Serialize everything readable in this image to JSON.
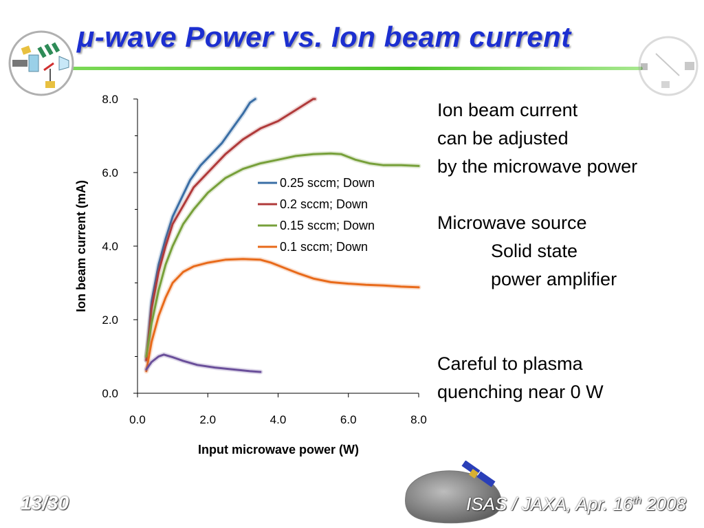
{
  "slide": {
    "title": "μ-wave Power vs. Ion beam current",
    "page_number": "13/30",
    "footer_org": "ISAS / JAXA, Apr. 16",
    "footer_sup": "th",
    "footer_year": " 2008"
  },
  "notes": {
    "line1": "Ion beam current",
    "line2": "can be adjusted",
    "line3": "by the microwave power",
    "line4": "Microwave source",
    "line5": "Solid state",
    "line6": "power amplifier",
    "line7": "Careful to plasma",
    "line8": "quenching near 0 W"
  },
  "colors": {
    "title": "#1c2fd0",
    "accent_bar": "#4fc62b"
  },
  "chart_data": {
    "type": "line",
    "xlabel": "Input microwave power (W)",
    "ylabel": "Ion beam current (mA)",
    "xlim": [
      0,
      8
    ],
    "ylim": [
      0,
      8
    ],
    "x_ticks": [
      "0.0",
      "2.0",
      "4.0",
      "6.0",
      "8.0"
    ],
    "y_ticks": [
      "0.0",
      "2.0",
      "4.0",
      "6.0",
      "8.0"
    ],
    "grid": false,
    "legend_position": "upper-right inside plot",
    "series": [
      {
        "name": "0.25 sccm; Down",
        "color": "#3a6ea5",
        "x": [
          0.25,
          0.4,
          0.6,
          0.8,
          1.0,
          1.2,
          1.5,
          1.8,
          2.1,
          2.4,
          2.7,
          3.0,
          3.2,
          3.35
        ],
        "y": [
          0.9,
          2.5,
          3.5,
          4.2,
          4.8,
          5.2,
          5.8,
          6.2,
          6.5,
          6.8,
          7.2,
          7.6,
          7.9,
          8.0
        ]
      },
      {
        "name": "0.2 sccm; Down",
        "color": "#b03a3a",
        "x": [
          0.25,
          0.4,
          0.6,
          0.8,
          1.0,
          1.3,
          1.6,
          2.0,
          2.5,
          3.0,
          3.5,
          4.0,
          4.5,
          5.0,
          5.05
        ],
        "y": [
          0.9,
          2.3,
          3.3,
          4.0,
          4.6,
          5.1,
          5.6,
          6.0,
          6.5,
          6.9,
          7.2,
          7.4,
          7.7,
          8.0,
          8.0
        ]
      },
      {
        "name": "0.15 sccm; Down",
        "color": "#77a03a",
        "x": [
          0.25,
          0.4,
          0.6,
          0.8,
          1.0,
          1.3,
          1.6,
          2.0,
          2.5,
          3.0,
          3.5,
          4.0,
          4.5,
          5.0,
          5.5,
          5.8,
          6.2,
          6.6,
          7.0,
          7.5,
          8.0
        ],
        "y": [
          1.0,
          1.9,
          2.8,
          3.5,
          4.0,
          4.6,
          5.0,
          5.45,
          5.85,
          6.1,
          6.25,
          6.35,
          6.45,
          6.5,
          6.52,
          6.5,
          6.35,
          6.25,
          6.2,
          6.2,
          6.18
        ]
      },
      {
        "name": "0.1 sccm; Down",
        "color": "#e86a1a",
        "x": [
          0.25,
          0.4,
          0.6,
          0.8,
          1.0,
          1.3,
          1.6,
          2.0,
          2.5,
          3.0,
          3.5,
          3.8,
          4.2,
          4.6,
          5.0,
          5.5,
          6.0,
          6.5,
          7.0,
          7.5,
          8.0
        ],
        "y": [
          0.6,
          1.4,
          2.1,
          2.6,
          3.0,
          3.3,
          3.45,
          3.55,
          3.63,
          3.65,
          3.63,
          3.55,
          3.4,
          3.25,
          3.12,
          3.02,
          2.98,
          2.95,
          2.93,
          2.9,
          2.88
        ]
      },
      {
        "name": "",
        "color": "#6a4f9a",
        "x": [
          0.25,
          0.4,
          0.6,
          0.75,
          1.0,
          1.3,
          1.7,
          2.2,
          2.7,
          3.2,
          3.5
        ],
        "y": [
          0.65,
          0.85,
          1.0,
          1.05,
          0.98,
          0.88,
          0.77,
          0.7,
          0.65,
          0.6,
          0.58
        ]
      }
    ]
  }
}
